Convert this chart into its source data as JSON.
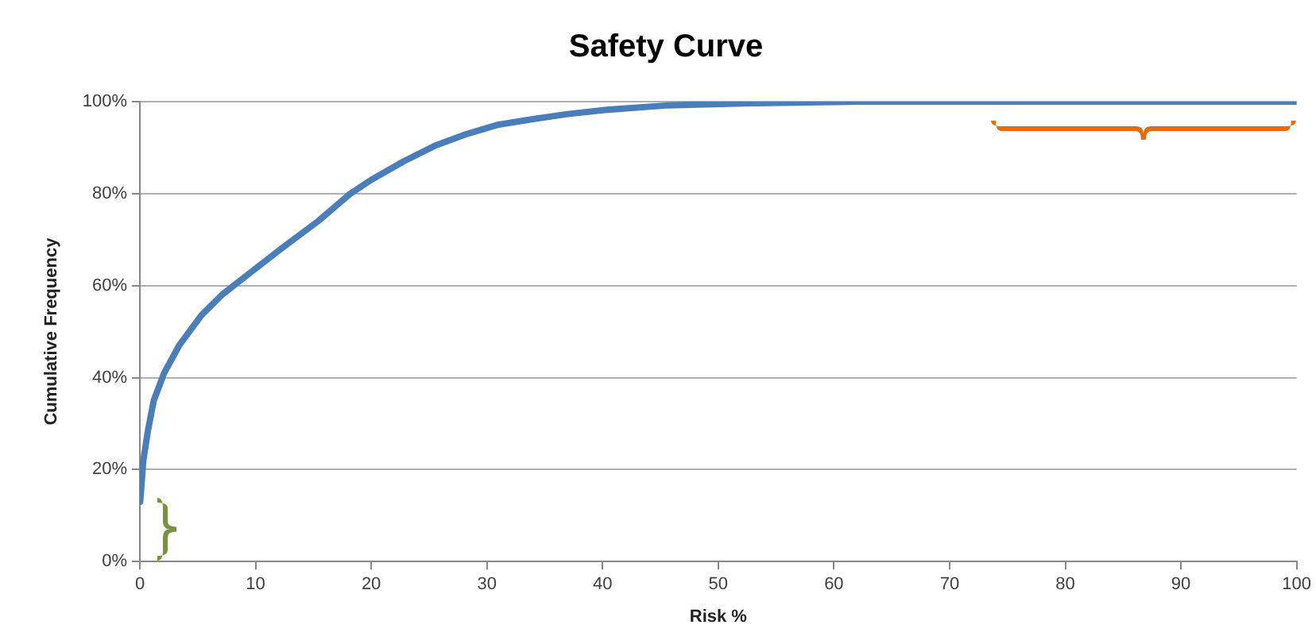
{
  "chart_data": {
    "type": "line",
    "title": "Safety Curve",
    "xlabel": "Risk %",
    "ylabel": "Cumulative Frequency",
    "x": [
      0.03,
      0.3,
      0.7,
      1.2,
      2.1,
      3.4,
      5.3,
      7.1,
      9.9,
      12.2,
      15.4,
      18.2,
      20,
      22.8,
      25.5,
      28.3,
      31,
      34.2,
      37,
      40.2,
      45.7,
      52.1,
      62.2,
      70,
      80,
      90,
      100
    ],
    "series": [
      {
        "color": "#4a7ebb",
        "values": [
          13,
          22,
          28.5,
          35,
          41,
          47,
          53.5,
          58,
          63.5,
          68,
          74,
          80,
          83,
          87,
          90.4,
          93,
          95,
          96.3,
          97.3,
          98.2,
          99.2,
          99.6,
          100,
          100,
          100,
          100,
          100
        ]
      }
    ],
    "xlim": [
      0,
      100
    ],
    "xticks": [
      0,
      10,
      20,
      30,
      40,
      50,
      60,
      70,
      80,
      90,
      100
    ],
    "ylim": [
      0,
      100
    ],
    "yticks": [
      {
        "value": 0,
        "label": "0%"
      },
      {
        "value": 20,
        "label": "20%"
      },
      {
        "value": 40,
        "label": "40%"
      },
      {
        "value": 60,
        "label": "60%"
      },
      {
        "value": 80,
        "label": "80%"
      },
      {
        "value": 100,
        "label": "100%"
      }
    ],
    "grid": "y",
    "legend": false,
    "marker": "none",
    "line_style": "solid"
  }
}
